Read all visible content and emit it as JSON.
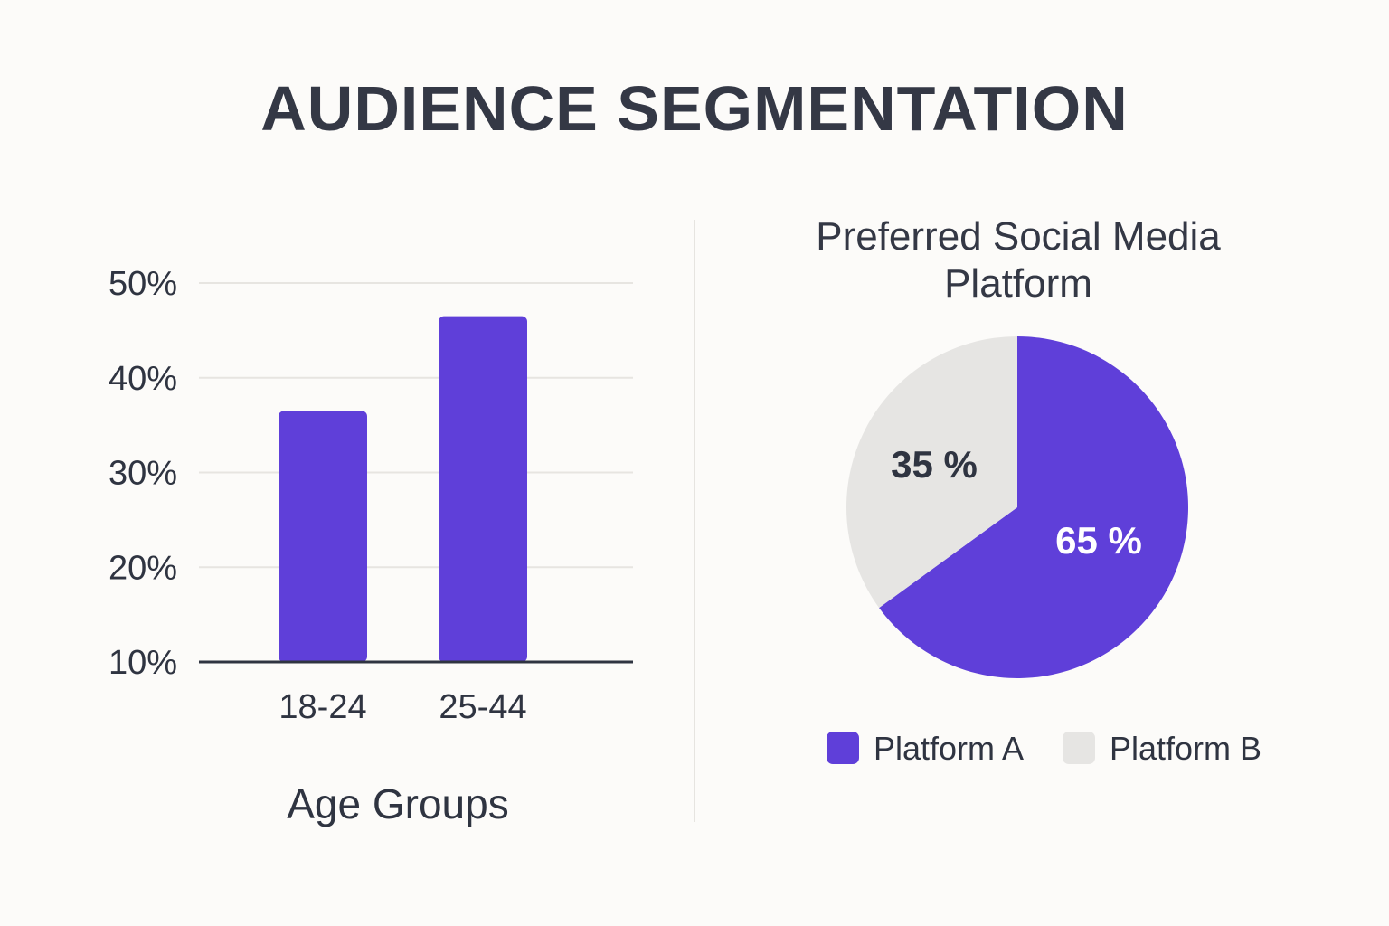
{
  "title": "AUDIENCE SEGMENTATION",
  "chart_data": [
    {
      "type": "bar",
      "categories": [
        "18-24",
        "25-44"
      ],
      "values": [
        36.5,
        46.5
      ],
      "xlabel": "Age Groups",
      "ylabel": "",
      "ylim": [
        10,
        50
      ],
      "yticks": [
        "10%",
        "20%",
        "30%",
        "40%",
        "50%"
      ],
      "ytick_values": [
        10,
        20,
        30,
        40,
        50
      ],
      "grid": true,
      "color": "#5f3fd9"
    },
    {
      "type": "pie",
      "title_lines": [
        "Preferred Social Media",
        "Platform"
      ],
      "slices": [
        {
          "name": "Platform A",
          "value": 65,
          "label": "65 %",
          "color": "#5f3fd9"
        },
        {
          "name": "Platform B",
          "value": 35,
          "label": "35 %",
          "color": "#e6e5e3"
        }
      ],
      "legend": "bottom"
    }
  ]
}
